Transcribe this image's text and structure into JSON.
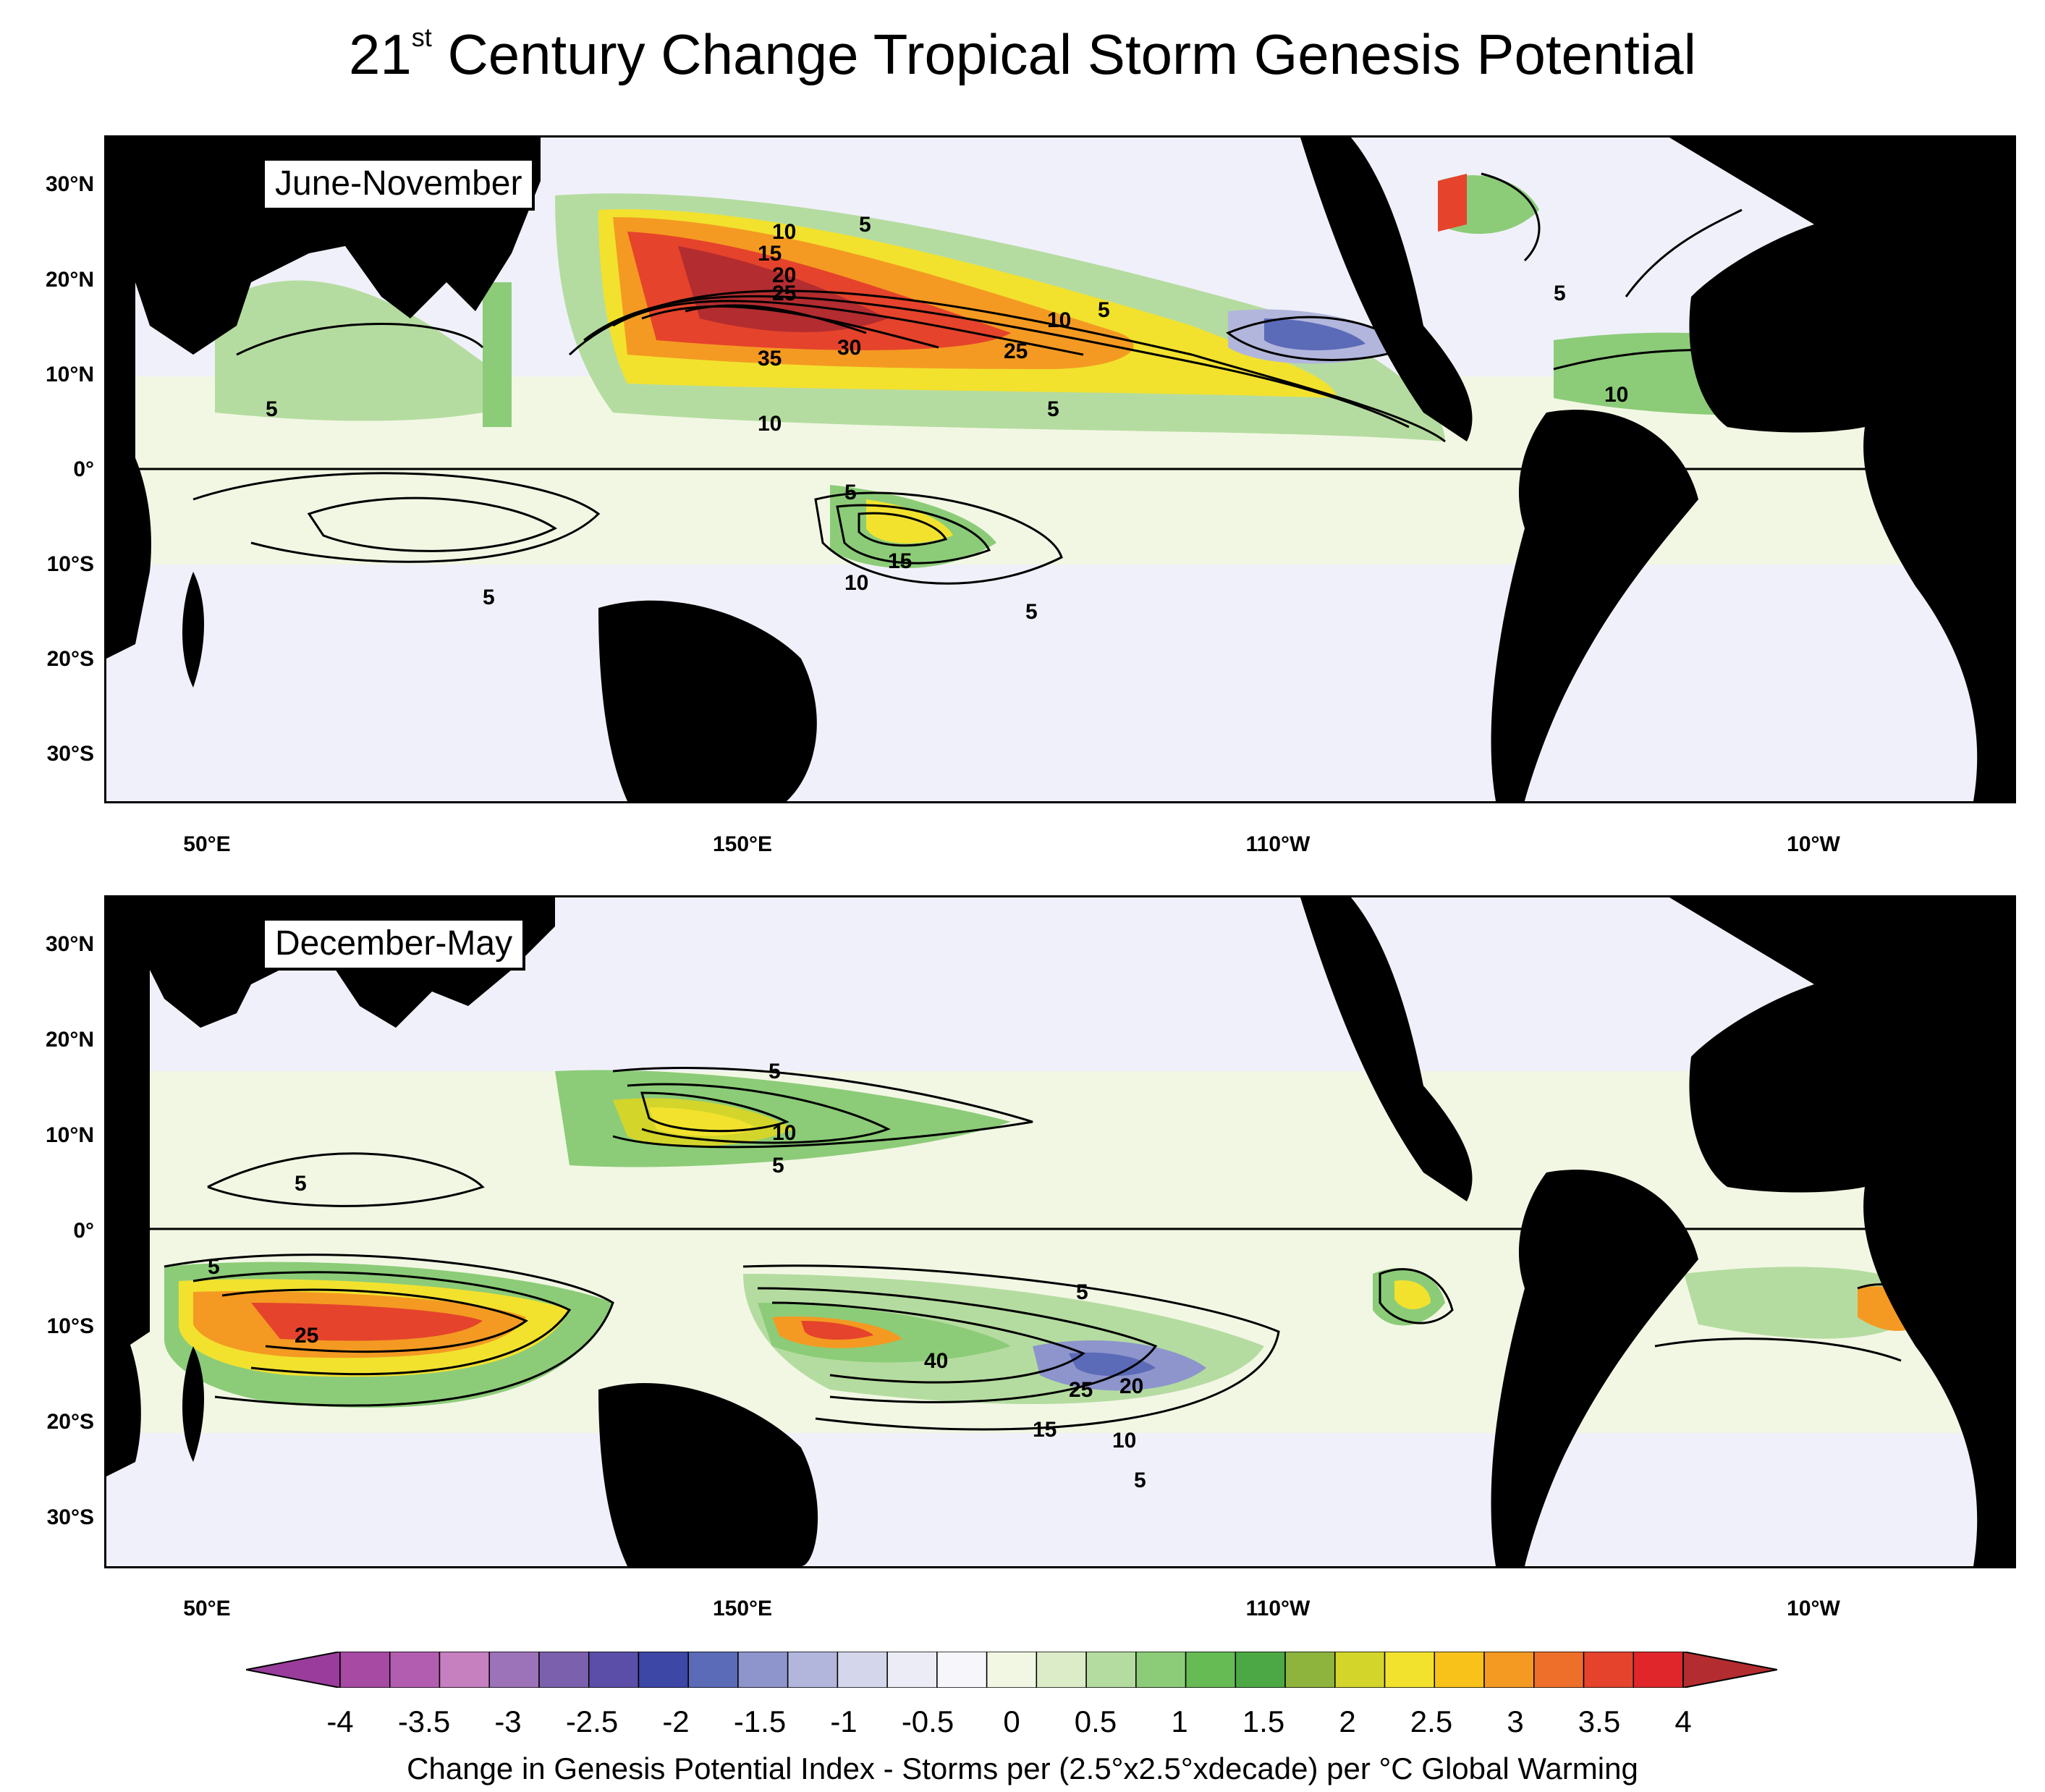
{
  "title": {
    "prefix": "21",
    "sup": "st",
    "rest": " Century Change Tropical Storm Genesis Potential"
  },
  "panels": {
    "top": {
      "label": "June-November"
    },
    "bottom": {
      "label": "December-May"
    }
  },
  "axes": {
    "y_labels": [
      "30°N",
      "20°N",
      "10°N",
      "0°",
      "10°S",
      "20°S",
      "30°S"
    ],
    "x_labels": [
      "50°E",
      "150°E",
      "110°W",
      "10°W"
    ]
  },
  "contour_labels_top": [
    "5",
    "10",
    "15",
    "20",
    "25",
    "30",
    "35",
    "25",
    "10",
    "5",
    "5",
    "10",
    "5",
    "10",
    "5",
    "5",
    "15",
    "10",
    "5",
    "5"
  ],
  "contour_labels_bottom": [
    "5",
    "10",
    "5",
    "5",
    "25",
    "5",
    "5",
    "40",
    "25",
    "20",
    "15",
    "10",
    "5"
  ],
  "colorbar": {
    "ticks": [
      "-4",
      "-3.5",
      "-3",
      "-2.5",
      "-2",
      "-1.5",
      "-1",
      "-0.5",
      "0",
      "0.5",
      "1",
      "1.5",
      "2",
      "2.5",
      "3",
      "3.5",
      "4"
    ],
    "colors": [
      "#9a3c9c",
      "#a64aa3",
      "#b25daf",
      "#c67fbf",
      "#9c73b8",
      "#7b61ad",
      "#5a4ea8",
      "#3d47a6",
      "#5b6bb8",
      "#8d95cc",
      "#b2b6dc",
      "#d4d6ec",
      "#ececf6",
      "#f7f7fb",
      "#f2f7e4",
      "#dcecc9",
      "#b5dca0",
      "#8ccc78",
      "#66bb55",
      "#4ca844",
      "#8fb43e",
      "#d4d52a",
      "#f2e22e",
      "#f9c21a",
      "#f49a22",
      "#ee6f2a",
      "#e5432c",
      "#e0262a",
      "#b32c2f"
    ],
    "title": "Change in Genesis Potential Index - Storms per (2.5°x2.5°xdecade) per °C Global Warming"
  }
}
